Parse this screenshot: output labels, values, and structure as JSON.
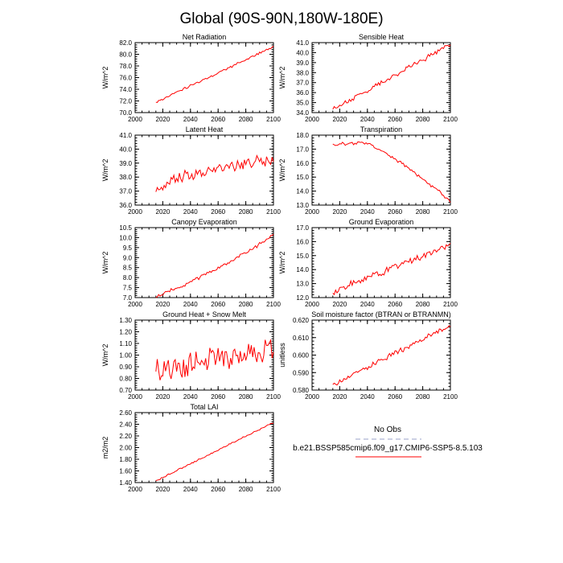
{
  "title": "Global (90S-90N,180W-180E)",
  "colors": {
    "series": "#ff0000",
    "obs": "#9aa0c8",
    "axis": "#000000"
  },
  "legend": {
    "obs_label": "No Obs",
    "model_label": "b.e21.BSSP585cmip6.f09_g17.CMIP6-SSP5-8.5.103"
  },
  "chart_data": [
    {
      "type": "line",
      "title": "Net Radiation",
      "xlabel": "",
      "ylabel": "W/m^2",
      "xlim": [
        2000,
        2100
      ],
      "ylim": [
        70,
        82
      ],
      "xticks": [
        "2000",
        "2020",
        "2040",
        "2060",
        "2080",
        "2100"
      ],
      "yticks": [
        "70.0",
        "72.0",
        "74.0",
        "76.0",
        "78.0",
        "80.0",
        "82.0"
      ],
      "x_start": 2015,
      "x_end": 2100,
      "start": 71.8,
      "end": 81.3,
      "noise": 0.45,
      "shape": "linear"
    },
    {
      "type": "line",
      "title": "Sensible Heat",
      "xlabel": "",
      "ylabel": "W/m^2",
      "xlim": [
        2000,
        2100
      ],
      "ylim": [
        34,
        41
      ],
      "xticks": [
        "2000",
        "2020",
        "2040",
        "2060",
        "2080",
        "2100"
      ],
      "yticks": [
        "34.0",
        "35.0",
        "36.0",
        "37.0",
        "38.0",
        "39.0",
        "40.0",
        "41.0"
      ],
      "x_start": 2015,
      "x_end": 2100,
      "start": 34.3,
      "end": 40.8,
      "noise": 0.55,
      "shape": "linear"
    },
    {
      "type": "line",
      "title": "Latent Heat",
      "xlabel": "",
      "ylabel": "W/m^2",
      "xlim": [
        2000,
        2100
      ],
      "ylim": [
        36,
        41
      ],
      "xticks": [
        "2000",
        "2020",
        "2040",
        "2060",
        "2080",
        "2100"
      ],
      "yticks": [
        "36.0",
        "37.0",
        "38.0",
        "39.0",
        "40.0",
        "41.0"
      ],
      "x_start": 2015,
      "x_end": 2100,
      "start": 36.8,
      "end": 39.3,
      "noise": 0.9,
      "shape": "log"
    },
    {
      "type": "line",
      "title": "Transpiration",
      "xlabel": "",
      "ylabel": "W/m^2",
      "xlim": [
        2000,
        2100
      ],
      "ylim": [
        13,
        18
      ],
      "xticks": [
        "2000",
        "2020",
        "2040",
        "2060",
        "2080",
        "2100"
      ],
      "yticks": [
        "13.0",
        "14.0",
        "15.0",
        "16.0",
        "17.0",
        "18.0"
      ],
      "x_start": 2015,
      "x_end": 2100,
      "start": 17.3,
      "end": 13.3,
      "noise": 0.25,
      "shape": "plateau",
      "peak": 17.5
    },
    {
      "type": "line",
      "title": "Canopy Evaporation",
      "xlabel": "",
      "ylabel": "W/m^2",
      "xlim": [
        2000,
        2100
      ],
      "ylim": [
        7,
        10.5
      ],
      "xticks": [
        "2000",
        "2020",
        "2040",
        "2060",
        "2080",
        "2100"
      ],
      "yticks": [
        "7.0",
        "7.5",
        "8.0",
        "8.5",
        "9.0",
        "9.5",
        "10.0",
        "10.5"
      ],
      "x_start": 2015,
      "x_end": 2100,
      "start": 7.05,
      "end": 10.1,
      "noise": 0.2,
      "shape": "quad"
    },
    {
      "type": "line",
      "title": "Ground Evaporation",
      "xlabel": "",
      "ylabel": "W/m^2",
      "xlim": [
        2000,
        2100
      ],
      "ylim": [
        12,
        17
      ],
      "xticks": [
        "2000",
        "2020",
        "2040",
        "2060",
        "2080",
        "2100"
      ],
      "yticks": [
        "12.0",
        "13.0",
        "14.0",
        "15.0",
        "16.0",
        "17.0"
      ],
      "x_start": 2015,
      "x_end": 2100,
      "start": 12.4,
      "end": 15.8,
      "noise": 0.55,
      "shape": "linear"
    },
    {
      "type": "line",
      "title": "Ground Heat + Snow Melt",
      "xlabel": "",
      "ylabel": "W/m^2",
      "xlim": [
        2000,
        2100
      ],
      "ylim": [
        0.7,
        1.3
      ],
      "xticks": [
        "2000",
        "2020",
        "2040",
        "2060",
        "2080",
        "2100"
      ],
      "yticks": [
        "0.70",
        "0.80",
        "0.90",
        "1.00",
        "1.10",
        "1.20",
        "1.30"
      ],
      "x_start": 2015,
      "x_end": 2100,
      "start": 0.87,
      "end": 1.04,
      "noise": 0.24,
      "shape": "linear"
    },
    {
      "type": "line",
      "title": "Soil moisture factor (BTRAN or BTRANMN)",
      "xlabel": "",
      "ylabel": "unitless",
      "xlim": [
        2000,
        2100
      ],
      "ylim": [
        0.58,
        0.62
      ],
      "xticks": [
        "2000",
        "2020",
        "2040",
        "2060",
        "2080",
        "2100"
      ],
      "yticks": [
        "0.580",
        "0.590",
        "0.600",
        "0.610",
        "0.620"
      ],
      "x_start": 2015,
      "x_end": 2100,
      "start": 0.583,
      "end": 0.617,
      "noise": 0.003,
      "shape": "linear"
    },
    {
      "type": "line",
      "title": "Total LAI",
      "xlabel": "",
      "ylabel": "m2/m2",
      "xlim": [
        2000,
        2100
      ],
      "ylim": [
        1.4,
        2.6
      ],
      "xticks": [
        "2000",
        "2020",
        "2040",
        "2060",
        "2080",
        "2100"
      ],
      "yticks": [
        "1.40",
        "1.60",
        "1.80",
        "2.00",
        "2.20",
        "2.40",
        "2.60"
      ],
      "x_start": 2015,
      "x_end": 2100,
      "start": 1.43,
      "end": 2.43,
      "noise": 0.025,
      "shape": "linear"
    }
  ]
}
